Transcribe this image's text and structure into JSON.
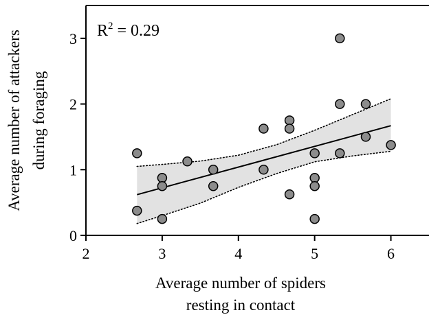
{
  "chart_data": {
    "type": "scatter",
    "title": "",
    "xlabel_lines": [
      "Average number of spiders",
      "resting in contact"
    ],
    "ylabel_lines": [
      "Average number of attackers",
      "during foraging"
    ],
    "xlim": [
      2,
      6.5
    ],
    "ylim": [
      0,
      3.5
    ],
    "x_ticks": [
      2,
      3,
      4,
      5,
      6
    ],
    "y_ticks": [
      0,
      1,
      2,
      3
    ],
    "annotation": {
      "prefix": "R",
      "superscript": "2",
      "suffix": " = 0.29",
      "placement": "top-left"
    },
    "grid": false,
    "points": [
      {
        "x": 2.67,
        "y": 1.25
      },
      {
        "x": 2.67,
        "y": 0.375
      },
      {
        "x": 3.0,
        "y": 0.875
      },
      {
        "x": 3.0,
        "y": 0.75
      },
      {
        "x": 3.0,
        "y": 0.25
      },
      {
        "x": 3.33,
        "y": 1.125
      },
      {
        "x": 3.67,
        "y": 1.0
      },
      {
        "x": 3.67,
        "y": 0.75
      },
      {
        "x": 4.33,
        "y": 1.625
      },
      {
        "x": 4.33,
        "y": 1.0
      },
      {
        "x": 4.67,
        "y": 1.75
      },
      {
        "x": 4.67,
        "y": 1.625
      },
      {
        "x": 4.67,
        "y": 0.625
      },
      {
        "x": 5.0,
        "y": 1.25
      },
      {
        "x": 5.0,
        "y": 0.875
      },
      {
        "x": 5.0,
        "y": 0.75
      },
      {
        "x": 5.0,
        "y": 0.25
      },
      {
        "x": 5.33,
        "y": 3.0
      },
      {
        "x": 5.33,
        "y": 2.0
      },
      {
        "x": 5.33,
        "y": 1.25
      },
      {
        "x": 5.67,
        "y": 2.0
      },
      {
        "x": 5.67,
        "y": 1.5
      },
      {
        "x": 6.0,
        "y": 1.375
      }
    ],
    "regression_line": {
      "x": [
        2.67,
        6.0
      ],
      "y": [
        0.62,
        1.67
      ]
    },
    "confidence_band": {
      "x": [
        2.67,
        3.0,
        3.5,
        4.0,
        4.5,
        5.0,
        5.5,
        6.0
      ],
      "upper": [
        1.05,
        1.08,
        1.13,
        1.22,
        1.38,
        1.6,
        1.84,
        2.08
      ],
      "lower": [
        0.18,
        0.3,
        0.49,
        0.73,
        0.94,
        1.12,
        1.21,
        1.28
      ]
    },
    "colors": {
      "point_fill": "#8c8c8c",
      "point_stroke": "#000000",
      "band_fill": "#e2e2e2",
      "band_edge": "#000000",
      "line": "#000000",
      "axis": "#000000"
    }
  }
}
